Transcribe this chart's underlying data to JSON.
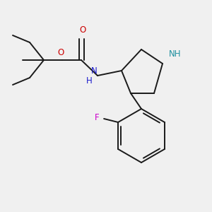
{
  "background_color": "#f0f0f0",
  "fig_size": [
    3.0,
    3.0
  ],
  "dpi": 100,
  "bond_color": "#1a1a1a",
  "bond_width": 1.4,
  "colors": {
    "N": "#1a1acc",
    "NH": "#2090a0",
    "O": "#cc0000",
    "F": "#cc00cc",
    "C": "#1a1a1a"
  },
  "font_size": 8.5
}
